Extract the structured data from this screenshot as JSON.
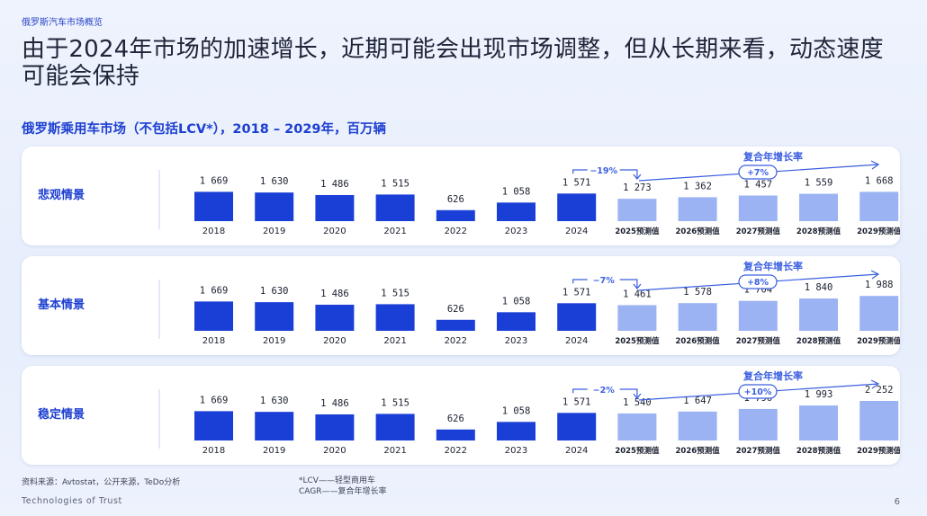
{
  "header": {
    "section_label": "俄罗斯汽车市场概览",
    "headline": "由于2024年市场的加速增长，近期可能会出现市场调整，但从长期来看，动态速度可能会保持",
    "subtitle": "俄罗斯乘用车市场（不包括LCV*），2018 – 2029年，百万辆"
  },
  "footer": {
    "source": "资料来源：Avtostat，公开来源，TeDo分析",
    "note_lcv": "*LCV——轻型商用车",
    "note_cagr": "CAGR——复合年增长率",
    "company": "Technologies of Trust",
    "page_number": "6"
  },
  "colors": {
    "actual_bar": "#1a3fd6",
    "forecast_bar": "#9cb3f3",
    "accent_line": "#3b5fe0",
    "scenario_title": "#1d3fd1"
  },
  "chart_data": [
    {
      "type": "bar",
      "title": "悲观情景",
      "categories": [
        "2018",
        "2019",
        "2020",
        "2021",
        "2022",
        "2023",
        "2024",
        "2025预测值",
        "2026预测值",
        "2027预测值",
        "2028预测值",
        "2029预测值"
      ],
      "values": [
        1669,
        1630,
        1486,
        1515,
        626,
        1058,
        1571,
        1273,
        1362,
        1457,
        1559,
        1668
      ],
      "value_labels": [
        "1 669",
        "1 630",
        "1 486",
        "1 515",
        "626",
        "1 058",
        "1 571",
        "1 273",
        "1 362",
        "1 457",
        "1 559",
        "1 668"
      ],
      "forecast_from_index": 7,
      "change_2025": "−19%",
      "cagr_label": "复合年增长率",
      "cagr": "+7%"
    },
    {
      "type": "bar",
      "title": "基本情景",
      "categories": [
        "2018",
        "2019",
        "2020",
        "2021",
        "2022",
        "2023",
        "2024",
        "2025预测值",
        "2026预测值",
        "2027预测值",
        "2028预测值",
        "2029预测值"
      ],
      "values": [
        1669,
        1630,
        1486,
        1515,
        626,
        1058,
        1571,
        1461,
        1578,
        1704,
        1840,
        1988
      ],
      "value_labels": [
        "1 669",
        "1 630",
        "1 486",
        "1 515",
        "626",
        "1 058",
        "1 571",
        "1 461",
        "1 578",
        "1 704",
        "1 840",
        "1 988"
      ],
      "forecast_from_index": 7,
      "change_2025": "−7%",
      "cagr_label": "复合年增长率",
      "cagr": "+8%"
    },
    {
      "type": "bar",
      "title": "稳定情景",
      "categories": [
        "2018",
        "2019",
        "2020",
        "2021",
        "2022",
        "2023",
        "2024",
        "2025预测值",
        "2026预测值",
        "2027预测值",
        "2028预测值",
        "2029预测值"
      ],
      "values": [
        1669,
        1630,
        1486,
        1515,
        626,
        1058,
        1571,
        1540,
        1647,
        1796,
        1993,
        2252
      ],
      "value_labels": [
        "1 669",
        "1 630",
        "1 486",
        "1 515",
        "626",
        "1 058",
        "1 571",
        "1 540",
        "1 647",
        "1 796",
        "1 993",
        "2 252"
      ],
      "forecast_from_index": 7,
      "change_2025": "−2%",
      "cagr_label": "复合年增长率",
      "cagr": "+10%"
    }
  ]
}
